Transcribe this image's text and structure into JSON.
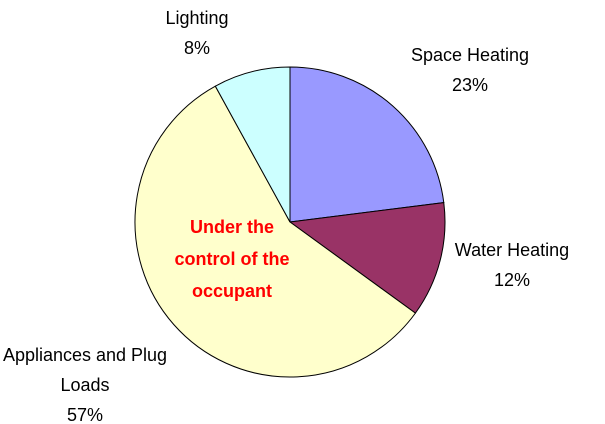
{
  "chart_data": {
    "type": "pie",
    "categories": [
      "Space Heating",
      "Water Heating",
      "Appliances and Plug Loads",
      "Lighting"
    ],
    "values": [
      23,
      12,
      57,
      8
    ],
    "value_labels": [
      "23%",
      "12%",
      "57%",
      "8%"
    ],
    "colors": [
      "#9999ff",
      "#993366",
      "#ffffcc",
      "#ccffff"
    ],
    "annotation": "Under the control of the occupant",
    "annotation_color": "#ff0000"
  }
}
